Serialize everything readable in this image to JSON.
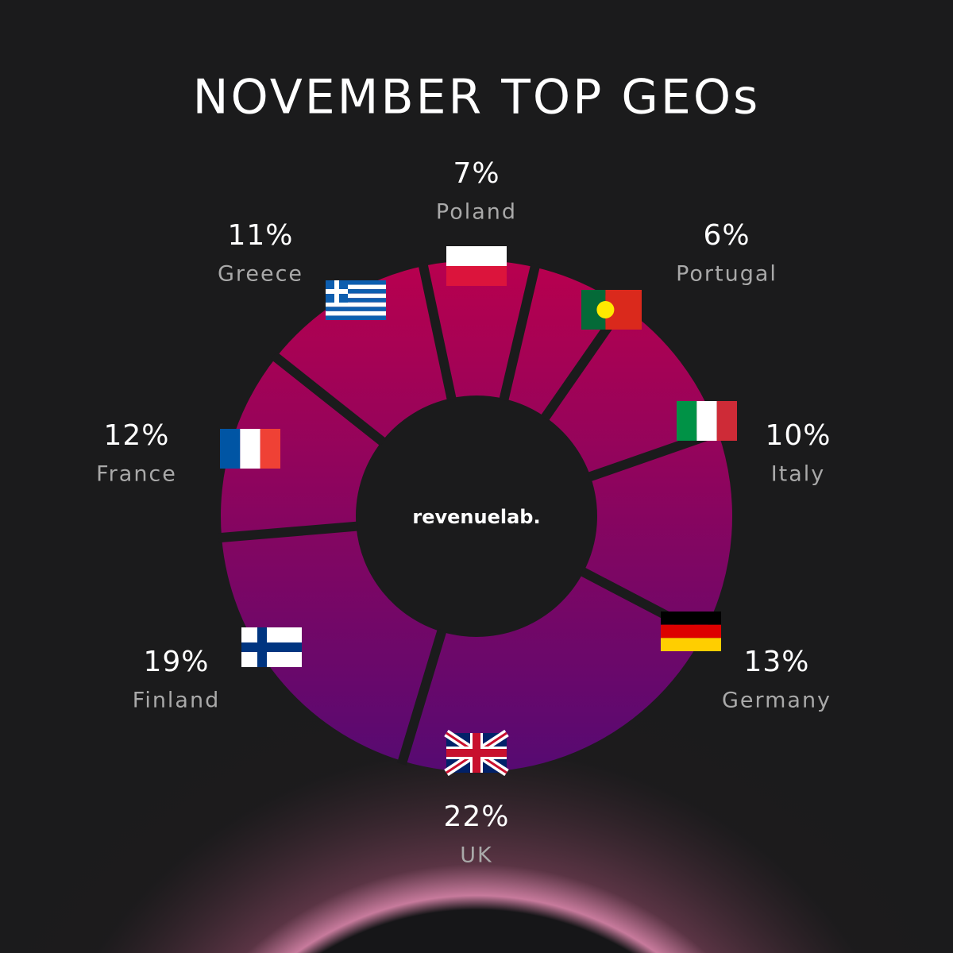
{
  "chart_data": {
    "type": "donut",
    "title": "NOVEMBER TOP GEOs",
    "center_text": "revenuelab.",
    "categories": [
      "Poland",
      "Portugal",
      "Italy",
      "Germany",
      "UK",
      "Finland",
      "France",
      "Greece"
    ],
    "values": [
      7,
      6,
      10,
      13,
      22,
      19,
      12,
      11
    ],
    "value_labels": [
      "7%",
      "6%",
      "10%",
      "13%",
      "22%",
      "19%",
      "12%",
      "11%"
    ],
    "gradient": [
      "#b8004e",
      "#560a72"
    ]
  }
}
